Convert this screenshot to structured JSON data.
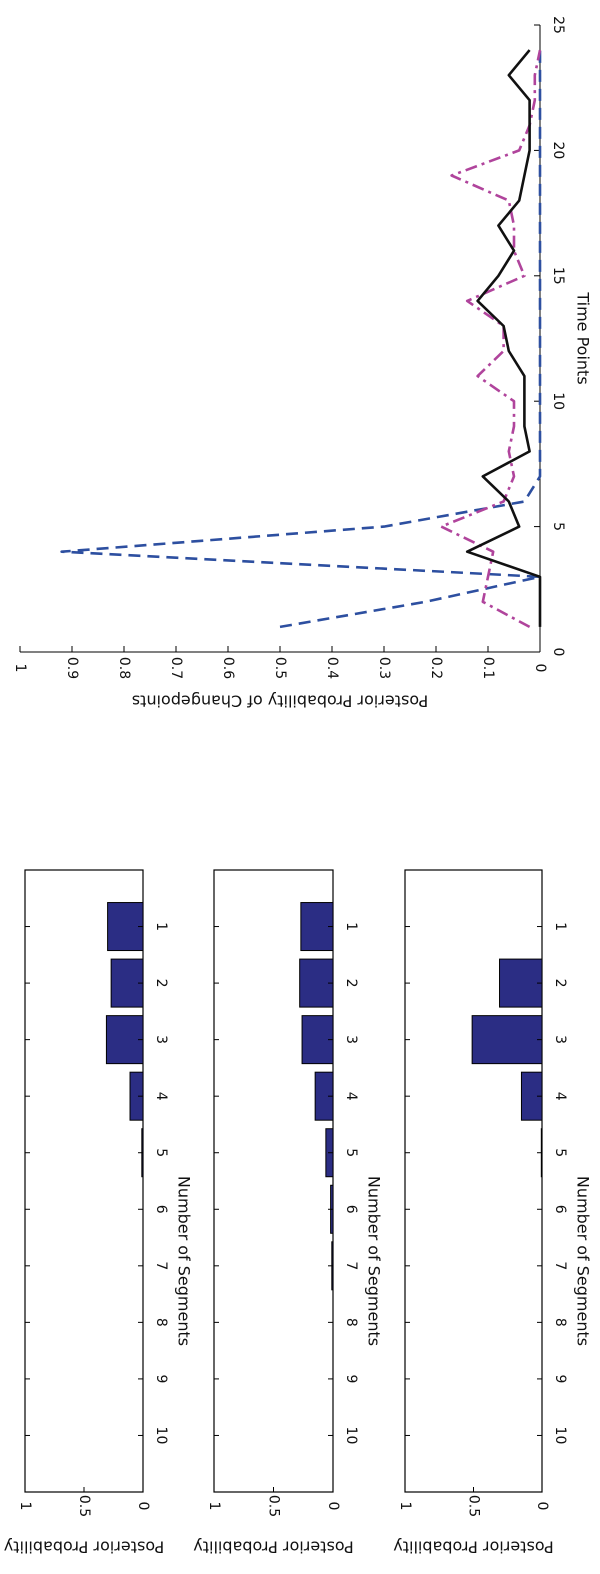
{
  "chart_data": [
    {
      "type": "bar",
      "categories": [
        1,
        2,
        3,
        4,
        5,
        6,
        7,
        8,
        9,
        10
      ],
      "values": [
        0.3,
        0.27,
        0.31,
        0.11,
        0.01,
        0,
        0,
        0,
        0,
        0
      ],
      "xlabel": "Number of Segments",
      "ylabel": "Posterior Probability",
      "xlim": [
        0,
        11
      ],
      "ylim": [
        0,
        1
      ],
      "yticks": [
        0,
        0.5,
        1
      ],
      "yticklabels": [
        "0",
        "0.5",
        "1"
      ],
      "xticks": [
        1,
        2,
        3,
        4,
        5,
        6,
        7,
        8,
        9,
        10
      ],
      "bar_color": "#2b2d84"
    },
    {
      "type": "bar",
      "categories": [
        1,
        2,
        3,
        4,
        5,
        6,
        7,
        8,
        9,
        10
      ],
      "values": [
        0.27,
        0.28,
        0.26,
        0.15,
        0.06,
        0.02,
        0.01,
        0,
        0,
        0
      ],
      "xlabel": "Number of Segments",
      "ylabel": "Posterior Probability",
      "xlim": [
        0,
        11
      ],
      "ylim": [
        0,
        1
      ],
      "yticks": [
        0,
        0.5,
        1
      ],
      "yticklabels": [
        "0",
        "0.5",
        "1"
      ],
      "xticks": [
        1,
        2,
        3,
        4,
        5,
        6,
        7,
        8,
        9,
        10
      ],
      "bar_color": "#2b2d84"
    },
    {
      "type": "bar",
      "categories": [
        1,
        2,
        3,
        4,
        5,
        6,
        7,
        8,
        9,
        10
      ],
      "values": [
        0,
        0.31,
        0.51,
        0.15,
        0.005,
        0,
        0,
        0,
        0,
        0
      ],
      "xlabel": "Number of Segments",
      "ylabel": "Posterior Probability",
      "xlim": [
        0,
        11
      ],
      "ylim": [
        0,
        1
      ],
      "yticks": [
        0,
        0.5,
        1
      ],
      "yticklabels": [
        "0",
        "0.5",
        "1"
      ],
      "xticks": [
        1,
        2,
        3,
        4,
        5,
        6,
        7,
        8,
        9,
        10
      ],
      "bar_color": "#2b2d84"
    },
    {
      "type": "line",
      "xlabel": "Time Points",
      "ylabel": "Posterior Probability of Changepoints",
      "xlim": [
        0,
        25
      ],
      "ylim": [
        0,
        1
      ],
      "xticks": [
        0,
        5,
        10,
        15,
        20,
        25
      ],
      "yticks": [
        0,
        0.1,
        0.2,
        0.3,
        0.4,
        0.5,
        0.6,
        0.7,
        0.8,
        0.9,
        1
      ],
      "yticklabels": [
        "0",
        "0.1",
        "0.2",
        "0.3",
        "0.4",
        "0.5",
        "0.6",
        "0.7",
        "0.8",
        "0.9",
        "1"
      ],
      "x": [
        1,
        2,
        3,
        4,
        5,
        6,
        7,
        8,
        9,
        10,
        11,
        12,
        13,
        14,
        15,
        16,
        17,
        18,
        19,
        20,
        21,
        22,
        23,
        24
      ],
      "series": [
        {
          "color": "#2d4fa0",
          "dash": "dashed",
          "values": [
            0.5,
            0.22,
            0.0,
            0.92,
            0.3,
            0.03,
            0.0,
            0.0,
            0.0,
            0.0,
            0.0,
            0.0,
            0.0,
            0.0,
            0.0,
            0.0,
            0.0,
            0.0,
            0.0,
            0.0,
            0.0,
            0.0,
            0.0,
            0.0
          ]
        },
        {
          "color": "#b0449c",
          "dash": "dashdot",
          "values": [
            0.02,
            0.11,
            0.1,
            0.09,
            0.19,
            0.07,
            0.05,
            0.06,
            0.05,
            0.05,
            0.12,
            0.07,
            0.07,
            0.14,
            0.03,
            0.05,
            0.05,
            0.06,
            0.17,
            0.04,
            0.02,
            0.01,
            0.01,
            0.0
          ]
        },
        {
          "color": "#111111",
          "dash": "solid",
          "values": [
            0.0,
            0.0,
            0.0,
            0.14,
            0.04,
            0.06,
            0.11,
            0.02,
            0.03,
            0.03,
            0.03,
            0.06,
            0.07,
            0.12,
            0.08,
            0.05,
            0.08,
            0.04,
            0.03,
            0.02,
            0.02,
            0.02,
            0.06,
            0.02
          ]
        }
      ]
    }
  ]
}
